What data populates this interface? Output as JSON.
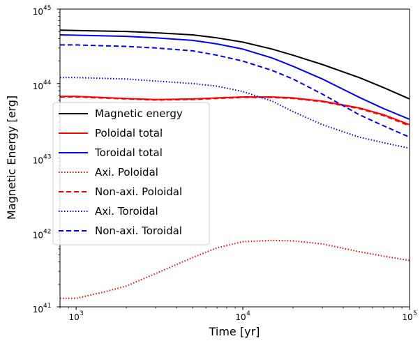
{
  "chart_data": {
    "type": "line",
    "xlabel": "Time [yr]",
    "ylabel": "Magnetic Energy [erg]",
    "xscale": "log",
    "yscale": "log",
    "xlim": [
      800,
      100000
    ],
    "ylim": [
      1e+41,
      1e+45
    ],
    "x_ticks": [
      {
        "value": 1000,
        "base": "10",
        "exp": "3"
      },
      {
        "value": 10000,
        "base": "10",
        "exp": "4"
      },
      {
        "value": 100000,
        "base": "10",
        "exp": "5"
      }
    ],
    "y_ticks": [
      {
        "value": 1e+41,
        "base": "10",
        "exp": "41"
      },
      {
        "value": 1e+42,
        "base": "10",
        "exp": "42"
      },
      {
        "value": 1e+43,
        "base": "10",
        "exp": "43"
      },
      {
        "value": 1e+44,
        "base": "10",
        "exp": "44"
      },
      {
        "value": 1e+45,
        "base": "10",
        "exp": "45"
      }
    ],
    "grid": false,
    "legend_position": "center-left",
    "series": [
      {
        "name": "Magnetic energy",
        "color": "#000000",
        "style": "solid",
        "x": [
          800,
          1000,
          2000,
          3000,
          5000,
          7000,
          10000,
          15000,
          20000,
          30000,
          50000,
          70000,
          100000
        ],
        "y": [
          5.2e+44,
          5.15e+44,
          5e+44,
          4.8e+44,
          4.5e+44,
          4.1e+44,
          3.6e+44,
          2.9e+44,
          2.4e+44,
          1.8e+44,
          1.2e+44,
          8.8e+43,
          6.2e+43
        ]
      },
      {
        "name": "Poloidal total",
        "color": "#ff0000",
        "style": "solid",
        "x": [
          800,
          1000,
          2000,
          3000,
          5000,
          7000,
          10000,
          15000,
          20000,
          30000,
          50000,
          70000,
          100000
        ],
        "y": [
          6.7e+43,
          6.7e+43,
          6.3e+43,
          6.1e+43,
          6.2e+43,
          6.4e+43,
          6.6e+43,
          6.6e+43,
          6.4e+43,
          5.8e+43,
          4.7e+43,
          3.8e+43,
          2.8e+43
        ]
      },
      {
        "name": "Toroidal total",
        "color": "#0000ff",
        "style": "solid",
        "x": [
          800,
          1000,
          2000,
          3000,
          5000,
          7000,
          10000,
          15000,
          20000,
          30000,
          50000,
          70000,
          100000
        ],
        "y": [
          4.5e+44,
          4.45e+44,
          4.3e+44,
          4.1e+44,
          3.8e+44,
          3.4e+44,
          2.9e+44,
          2.2e+44,
          1.7e+44,
          1.15e+44,
          6.5e+43,
          4.6e+43,
          3.3e+43
        ]
      },
      {
        "name": "Axi. Poloidal",
        "color": "#ff0000",
        "style": "dotted",
        "x": [
          800,
          1000,
          1500,
          2000,
          3000,
          5000,
          7000,
          10000,
          15000,
          20000,
          30000,
          50000,
          70000,
          100000
        ],
        "y": [
          1.3e+41,
          1.3e+41,
          1.6e+41,
          1.9e+41,
          2.8e+41,
          4.6e+41,
          6.2e+41,
          7.5e+41,
          7.8e+41,
          7.7e+41,
          7e+41,
          5.5e+41,
          4.8e+41,
          4.2e+41
        ]
      },
      {
        "name": "Non-axi. Poloidal",
        "color": "#ff0000",
        "style": "dashed",
        "x": [
          800,
          1000,
          2000,
          3000,
          5000,
          7000,
          10000,
          15000,
          20000,
          30000,
          50000,
          70000,
          100000
        ],
        "y": [
          6.6e+43,
          6.6e+43,
          6.2e+43,
          6e+43,
          6.1e+43,
          6.3e+43,
          6.5e+43,
          6.5e+43,
          6.3e+43,
          5.7e+43,
          4.6e+43,
          3.7e+43,
          2.7e+43
        ]
      },
      {
        "name": "Axi. Toroidal",
        "color": "#0000ff",
        "style": "dotted",
        "x": [
          800,
          1000,
          2000,
          3000,
          5000,
          7000,
          10000,
          15000,
          20000,
          30000,
          50000,
          70000,
          100000
        ],
        "y": [
          1.2e+44,
          1.2e+44,
          1.15e+44,
          1.08e+44,
          1e+44,
          9.2e+43,
          7.8e+43,
          5.8e+43,
          4.2e+43,
          2.8e+43,
          1.9e+43,
          1.6e+43,
          1.35e+43
        ]
      },
      {
        "name": "Non-axi. Toroidal",
        "color": "#0000ff",
        "style": "dashed",
        "x": [
          800,
          1000,
          2000,
          3000,
          5000,
          7000,
          10000,
          15000,
          20000,
          30000,
          50000,
          70000,
          100000
        ],
        "y": [
          3.3e+44,
          3.3e+44,
          3.15e+44,
          3e+44,
          2.75e+44,
          2.4e+44,
          2e+44,
          1.5e+44,
          1.15e+44,
          7.2e+43,
          3.8e+43,
          2.7e+43,
          1.9e+43
        ]
      }
    ]
  }
}
